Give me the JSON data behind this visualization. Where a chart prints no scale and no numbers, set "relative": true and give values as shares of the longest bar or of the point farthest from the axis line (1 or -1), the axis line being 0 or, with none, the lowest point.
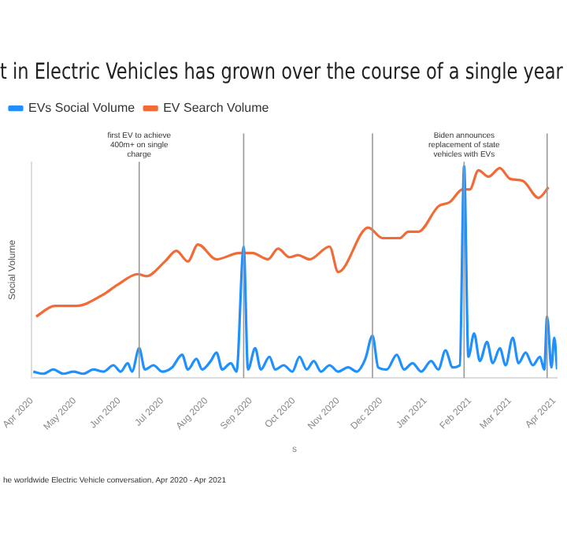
{
  "chart_data": {
    "type": "line",
    "title": "t in Electric Vehicles has grown over the course of a single year",
    "xlabel": "s",
    "ylabel": "Social Volume",
    "relative": true,
    "legend": "top left",
    "grid": false,
    "marker": "none",
    "line_style": "solid",
    "xlim": [
      "2020-04-01",
      "2021-04-03"
    ],
    "xticks": [
      {
        "value": "2020-04-01",
        "label": "Apr 2020"
      },
      {
        "value": "2020-05-01",
        "label": "May 2020"
      },
      {
        "value": "2020-06-01",
        "label": "Jun 2020"
      },
      {
        "value": "2020-07-01",
        "label": "Jul 2020"
      },
      {
        "value": "2020-08-01",
        "label": "Aug 2020"
      },
      {
        "value": "2020-09-01",
        "label": "Sep 2020"
      },
      {
        "value": "2020-10-01",
        "label": "Oct 2020"
      },
      {
        "value": "2020-11-01",
        "label": "Nov 2020"
      },
      {
        "value": "2020-12-01",
        "label": "Dec 2020"
      },
      {
        "value": "2021-01-01",
        "label": "Jan 2021"
      },
      {
        "value": "2021-02-01",
        "label": "Feb 2021"
      },
      {
        "value": "2021-03-01",
        "label": "Mar 2021"
      },
      {
        "value": "2021-04-01",
        "label": "Apr 2021"
      }
    ],
    "series": [
      {
        "name": "EVs Social Volume",
        "color": "#1e90ff",
        "x": [
          "2020-04-02",
          "2020-04-09",
          "2020-04-16",
          "2020-04-23",
          "2020-04-30",
          "2020-05-07",
          "2020-05-14",
          "2020-05-21",
          "2020-05-28",
          "2020-06-02",
          "2020-06-07",
          "2020-06-10",
          "2020-06-15",
          "2020-06-19",
          "2020-06-25",
          "2020-07-01",
          "2020-07-08",
          "2020-07-15",
          "2020-07-19",
          "2020-07-25",
          "2020-07-29",
          "2020-08-04",
          "2020-08-08",
          "2020-08-12",
          "2020-08-18",
          "2020-08-22",
          "2020-08-27",
          "2020-08-30",
          "2020-09-04",
          "2020-09-08",
          "2020-09-14",
          "2020-09-18",
          "2020-09-24",
          "2020-09-30",
          "2020-10-05",
          "2020-10-10",
          "2020-10-15",
          "2020-10-20",
          "2020-10-26",
          "2020-11-01",
          "2020-11-08",
          "2020-11-14",
          "2020-11-20",
          "2020-11-25",
          "2020-11-29",
          "2020-12-05",
          "2020-12-12",
          "2020-12-17",
          "2020-12-23",
          "2020-12-29",
          "2021-01-05",
          "2021-01-10",
          "2021-01-15",
          "2021-01-20",
          "2021-01-25",
          "2021-01-28",
          "2021-01-31",
          "2021-02-04",
          "2021-02-08",
          "2021-02-13",
          "2021-02-17",
          "2021-02-22",
          "2021-02-26",
          "2021-03-03",
          "2021-03-07",
          "2021-03-12",
          "2021-03-17",
          "2021-03-22",
          "2021-03-25",
          "2021-03-27",
          "2021-03-30",
          "2021-04-01",
          "2021-04-03"
        ],
        "values": [
          0.03,
          0.02,
          0.04,
          0.02,
          0.03,
          0.02,
          0.04,
          0.03,
          0.06,
          0.03,
          0.07,
          0.03,
          0.14,
          0.04,
          0.06,
          0.03,
          0.05,
          0.11,
          0.04,
          0.09,
          0.04,
          0.08,
          0.12,
          0.04,
          0.07,
          0.03,
          0.62,
          0.04,
          0.14,
          0.04,
          0.1,
          0.04,
          0.06,
          0.03,
          0.1,
          0.04,
          0.08,
          0.03,
          0.06,
          0.03,
          0.05,
          0.03,
          0.09,
          0.2,
          0.05,
          0.04,
          0.11,
          0.04,
          0.07,
          0.03,
          0.08,
          0.04,
          0.13,
          0.05,
          0.06,
          1.0,
          0.1,
          0.21,
          0.08,
          0.17,
          0.07,
          0.14,
          0.06,
          0.19,
          0.07,
          0.12,
          0.06,
          0.1,
          0.04,
          0.29,
          0.05,
          0.19,
          0.04
        ]
      },
      {
        "name": "EV Search Volume",
        "color": "#f26b36",
        "x": [
          "2020-04-04",
          "2020-04-17",
          "2020-05-02",
          "2020-05-20",
          "2020-05-31",
          "2020-06-14",
          "2020-06-20",
          "2020-07-03",
          "2020-07-11",
          "2020-07-19",
          "2020-07-26",
          "2020-08-08",
          "2020-08-24",
          "2020-09-02",
          "2020-09-13",
          "2020-09-20",
          "2020-09-28",
          "2020-10-04",
          "2020-10-12",
          "2020-10-26",
          "2020-11-01",
          "2020-11-22",
          "2020-12-02",
          "2020-12-14",
          "2020-12-20",
          "2020-12-27",
          "2021-01-10",
          "2021-01-18",
          "2021-01-27",
          "2021-02-01",
          "2021-02-07",
          "2021-02-14",
          "2021-02-22",
          "2021-03-01",
          "2021-03-10",
          "2021-03-21",
          "2021-03-28"
        ],
        "values": [
          0.29,
          0.34,
          0.34,
          0.39,
          0.44,
          0.49,
          0.48,
          0.55,
          0.6,
          0.55,
          0.63,
          0.56,
          0.59,
          0.59,
          0.56,
          0.61,
          0.57,
          0.58,
          0.56,
          0.62,
          0.5,
          0.71,
          0.66,
          0.66,
          0.69,
          0.69,
          0.81,
          0.83,
          0.89,
          0.89,
          0.98,
          0.95,
          0.99,
          0.94,
          0.93,
          0.85,
          0.9
        ]
      }
    ],
    "ref_lines": [
      {
        "axis": "x",
        "value": "2020-06-15",
        "label": "first EV to achieve 400m+ on single charge",
        "color": "#999999"
      },
      {
        "axis": "x",
        "value": "2020-08-27",
        "color": "#999999"
      },
      {
        "axis": "x",
        "value": "2020-11-25",
        "color": "#999999"
      },
      {
        "axis": "x",
        "value": "2021-01-28",
        "label": "Biden announces replacement of state vehicles with EVs",
        "color": "#999999"
      },
      {
        "axis": "x",
        "value": "2021-03-27",
        "color": "#999999"
      }
    ],
    "annotations": [
      "he worldwide Electric Vehicle conversation, Apr 2020 - Apr 2021"
    ]
  }
}
